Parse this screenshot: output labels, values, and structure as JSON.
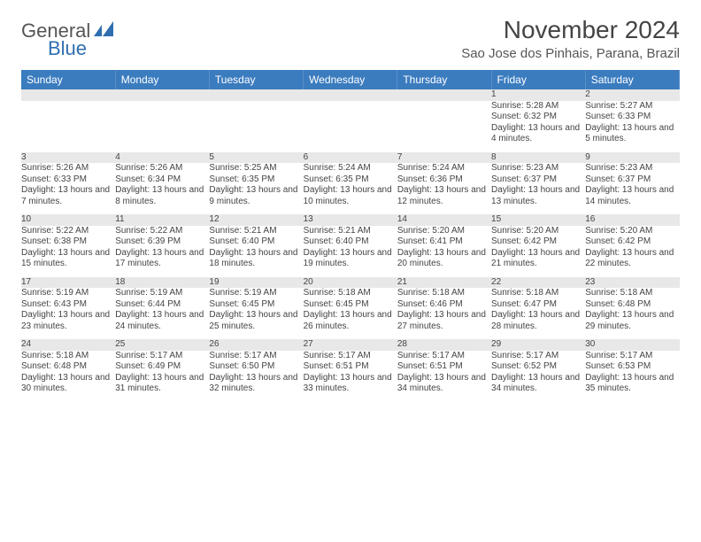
{
  "logo": {
    "line1": "General",
    "line2": "Blue"
  },
  "colors": {
    "blue": "#3b7cbf",
    "logo_text": "#555555",
    "logo_blue": "#2f6fb0",
    "dark_text": "#3a3a3a",
    "row_header_gray": "#e8e8e8",
    "background": "#ffffff"
  },
  "typography": {
    "month_title_fontsize": 28,
    "location_fontsize": 15,
    "weekday_header_fontsize": 12,
    "daynum_fontsize": 11,
    "cell_fontsize": 10
  },
  "title": "November 2024",
  "location": "Sao Jose dos Pinhais, Parana, Brazil",
  "weekdays": [
    "Sunday",
    "Monday",
    "Tuesday",
    "Wednesday",
    "Thursday",
    "Friday",
    "Saturday"
  ],
  "weeks": [
    [
      null,
      null,
      null,
      null,
      null,
      {
        "d": "1",
        "sr": "Sunrise: 5:28 AM",
        "ss": "Sunset: 6:32 PM",
        "dl": "Daylight: 13 hours and 4 minutes."
      },
      {
        "d": "2",
        "sr": "Sunrise: 5:27 AM",
        "ss": "Sunset: 6:33 PM",
        "dl": "Daylight: 13 hours and 5 minutes."
      }
    ],
    [
      {
        "d": "3",
        "sr": "Sunrise: 5:26 AM",
        "ss": "Sunset: 6:33 PM",
        "dl": "Daylight: 13 hours and 7 minutes."
      },
      {
        "d": "4",
        "sr": "Sunrise: 5:26 AM",
        "ss": "Sunset: 6:34 PM",
        "dl": "Daylight: 13 hours and 8 minutes."
      },
      {
        "d": "5",
        "sr": "Sunrise: 5:25 AM",
        "ss": "Sunset: 6:35 PM",
        "dl": "Daylight: 13 hours and 9 minutes."
      },
      {
        "d": "6",
        "sr": "Sunrise: 5:24 AM",
        "ss": "Sunset: 6:35 PM",
        "dl": "Daylight: 13 hours and 10 minutes."
      },
      {
        "d": "7",
        "sr": "Sunrise: 5:24 AM",
        "ss": "Sunset: 6:36 PM",
        "dl": "Daylight: 13 hours and 12 minutes."
      },
      {
        "d": "8",
        "sr": "Sunrise: 5:23 AM",
        "ss": "Sunset: 6:37 PM",
        "dl": "Daylight: 13 hours and 13 minutes."
      },
      {
        "d": "9",
        "sr": "Sunrise: 5:23 AM",
        "ss": "Sunset: 6:37 PM",
        "dl": "Daylight: 13 hours and 14 minutes."
      }
    ],
    [
      {
        "d": "10",
        "sr": "Sunrise: 5:22 AM",
        "ss": "Sunset: 6:38 PM",
        "dl": "Daylight: 13 hours and 15 minutes."
      },
      {
        "d": "11",
        "sr": "Sunrise: 5:22 AM",
        "ss": "Sunset: 6:39 PM",
        "dl": "Daylight: 13 hours and 17 minutes."
      },
      {
        "d": "12",
        "sr": "Sunrise: 5:21 AM",
        "ss": "Sunset: 6:40 PM",
        "dl": "Daylight: 13 hours and 18 minutes."
      },
      {
        "d": "13",
        "sr": "Sunrise: 5:21 AM",
        "ss": "Sunset: 6:40 PM",
        "dl": "Daylight: 13 hours and 19 minutes."
      },
      {
        "d": "14",
        "sr": "Sunrise: 5:20 AM",
        "ss": "Sunset: 6:41 PM",
        "dl": "Daylight: 13 hours and 20 minutes."
      },
      {
        "d": "15",
        "sr": "Sunrise: 5:20 AM",
        "ss": "Sunset: 6:42 PM",
        "dl": "Daylight: 13 hours and 21 minutes."
      },
      {
        "d": "16",
        "sr": "Sunrise: 5:20 AM",
        "ss": "Sunset: 6:42 PM",
        "dl": "Daylight: 13 hours and 22 minutes."
      }
    ],
    [
      {
        "d": "17",
        "sr": "Sunrise: 5:19 AM",
        "ss": "Sunset: 6:43 PM",
        "dl": "Daylight: 13 hours and 23 minutes."
      },
      {
        "d": "18",
        "sr": "Sunrise: 5:19 AM",
        "ss": "Sunset: 6:44 PM",
        "dl": "Daylight: 13 hours and 24 minutes."
      },
      {
        "d": "19",
        "sr": "Sunrise: 5:19 AM",
        "ss": "Sunset: 6:45 PM",
        "dl": "Daylight: 13 hours and 25 minutes."
      },
      {
        "d": "20",
        "sr": "Sunrise: 5:18 AM",
        "ss": "Sunset: 6:45 PM",
        "dl": "Daylight: 13 hours and 26 minutes."
      },
      {
        "d": "21",
        "sr": "Sunrise: 5:18 AM",
        "ss": "Sunset: 6:46 PM",
        "dl": "Daylight: 13 hours and 27 minutes."
      },
      {
        "d": "22",
        "sr": "Sunrise: 5:18 AM",
        "ss": "Sunset: 6:47 PM",
        "dl": "Daylight: 13 hours and 28 minutes."
      },
      {
        "d": "23",
        "sr": "Sunrise: 5:18 AM",
        "ss": "Sunset: 6:48 PM",
        "dl": "Daylight: 13 hours and 29 minutes."
      }
    ],
    [
      {
        "d": "24",
        "sr": "Sunrise: 5:18 AM",
        "ss": "Sunset: 6:48 PM",
        "dl": "Daylight: 13 hours and 30 minutes."
      },
      {
        "d": "25",
        "sr": "Sunrise: 5:17 AM",
        "ss": "Sunset: 6:49 PM",
        "dl": "Daylight: 13 hours and 31 minutes."
      },
      {
        "d": "26",
        "sr": "Sunrise: 5:17 AM",
        "ss": "Sunset: 6:50 PM",
        "dl": "Daylight: 13 hours and 32 minutes."
      },
      {
        "d": "27",
        "sr": "Sunrise: 5:17 AM",
        "ss": "Sunset: 6:51 PM",
        "dl": "Daylight: 13 hours and 33 minutes."
      },
      {
        "d": "28",
        "sr": "Sunrise: 5:17 AM",
        "ss": "Sunset: 6:51 PM",
        "dl": "Daylight: 13 hours and 34 minutes."
      },
      {
        "d": "29",
        "sr": "Sunrise: 5:17 AM",
        "ss": "Sunset: 6:52 PM",
        "dl": "Daylight: 13 hours and 34 minutes."
      },
      {
        "d": "30",
        "sr": "Sunrise: 5:17 AM",
        "ss": "Sunset: 6:53 PM",
        "dl": "Daylight: 13 hours and 35 minutes."
      }
    ]
  ]
}
